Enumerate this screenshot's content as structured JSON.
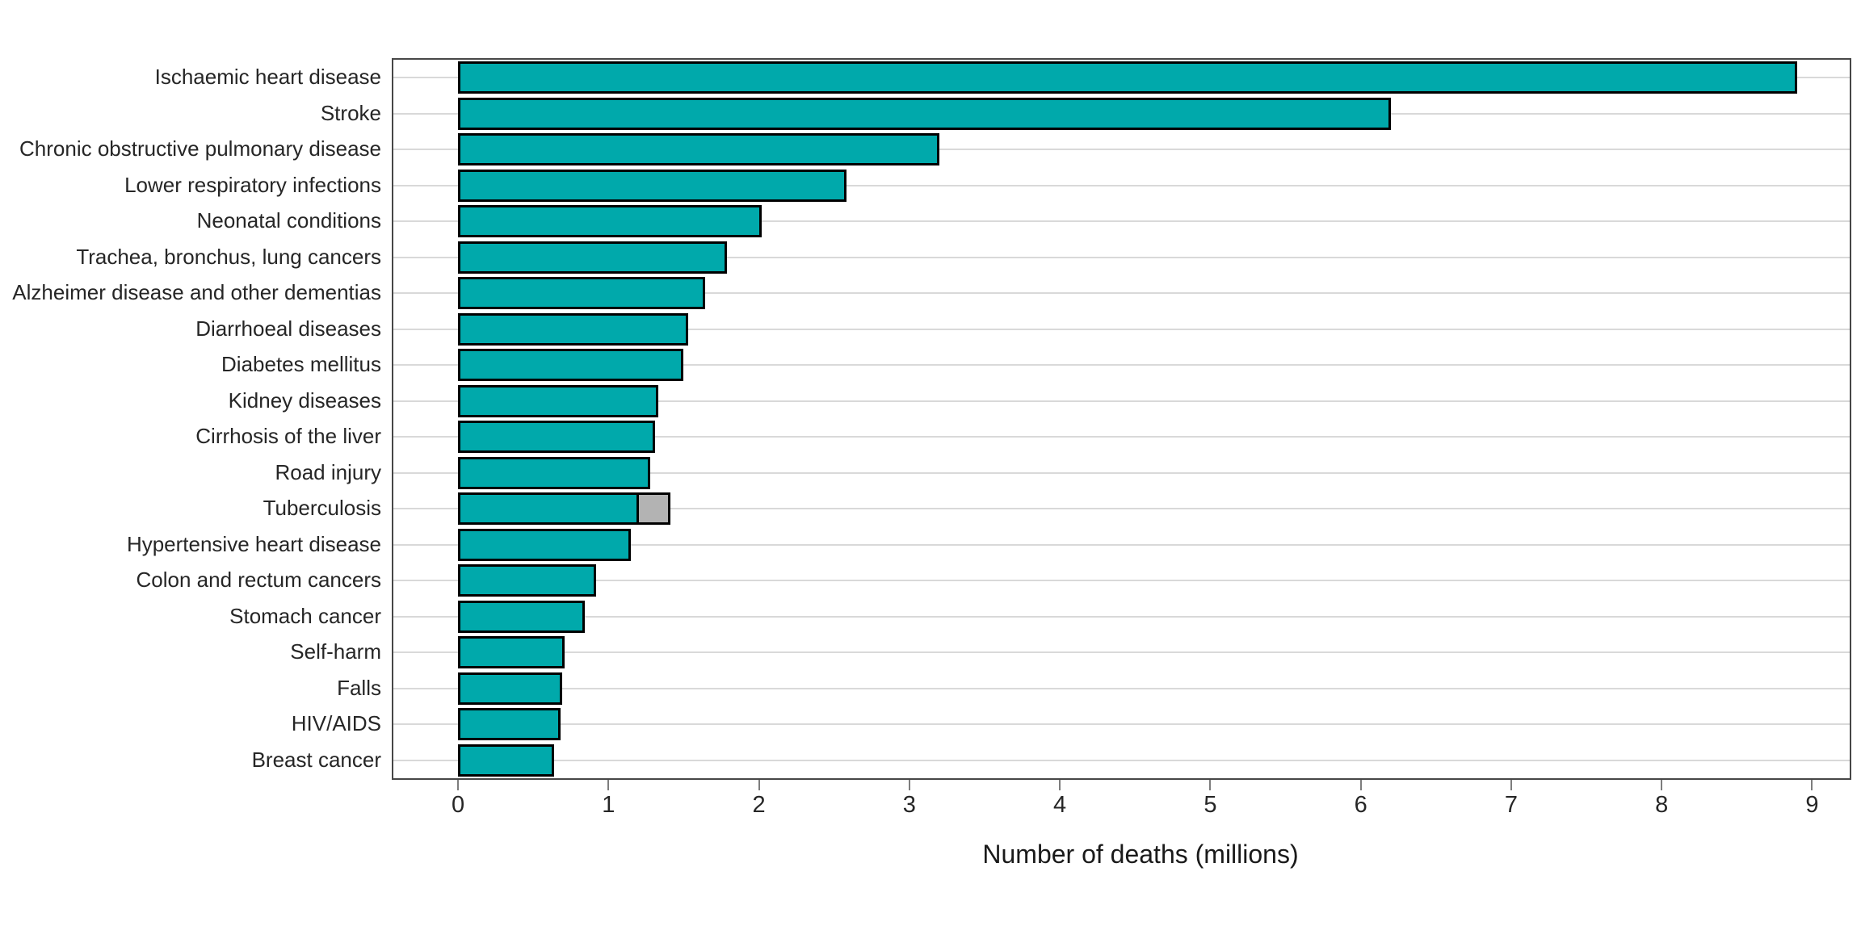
{
  "chart_data": {
    "type": "bar",
    "orientation": "horizontal",
    "title": "",
    "xlabel": "Number of deaths (millions)",
    "ylabel": "",
    "categories": [
      "Ischaemic heart disease",
      "Stroke",
      "Chronic obstructive pulmonary disease",
      "Lower respiratory infections",
      "Neonatal conditions",
      "Trachea, bronchus, lung cancers",
      "Alzheimer disease and other dementias",
      "Diarrhoeal diseases",
      "Diabetes mellitus",
      "Kidney diseases",
      "Cirrhosis of the liver",
      "Road injury",
      "Tuberculosis",
      "Hypertensive heart disease",
      "Colon and rectum cancers",
      "Stomach cancer",
      "Self-harm",
      "Falls",
      "HIV/AIDS",
      "Breast cancer"
    ],
    "values": [
      8.9,
      6.2,
      3.2,
      2.58,
      2.02,
      1.79,
      1.64,
      1.53,
      1.5,
      1.33,
      1.31,
      1.28,
      1.2,
      1.15,
      0.92,
      0.84,
      0.71,
      0.69,
      0.68,
      0.64
    ],
    "extra_segments": [
      {
        "category_index": 12,
        "category": "Tuberculosis",
        "value": 0.21,
        "color": "#b3b3b3"
      }
    ],
    "bar_color": "#00a9ab",
    "bar_border_color": "#000000",
    "x_ticks": [
      0,
      1,
      2,
      3,
      4,
      5,
      6,
      7,
      8,
      9
    ],
    "x_tick_labels": [
      "0",
      "1",
      "2",
      "3",
      "4",
      "5",
      "6",
      "7",
      "8",
      "9"
    ],
    "x_range": [
      -0.43,
      9.25
    ],
    "grid": "horizontal-gridlines-only",
    "legend": "none",
    "gridline_color": "#d9d9d9",
    "panel_border_color": "#474747"
  }
}
